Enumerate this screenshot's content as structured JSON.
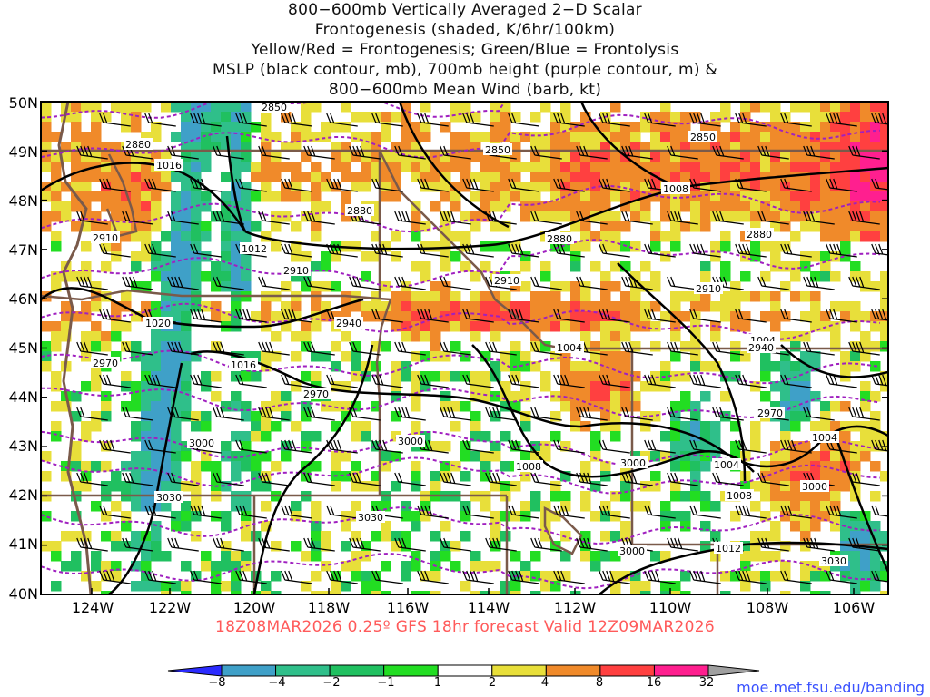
{
  "title": {
    "line1": "800−600mb Vertically Averaged 2−D Scalar",
    "line2": "Frontogenesis (shaded, K/6hr/100km)",
    "line3": "Yellow/Red = Frontogenesis;  Green/Blue = Frontolysis",
    "line4": "MSLP (black contour, mb), 700mb height (purple contour, m) &",
    "line5": "800−600mb Mean Wind (barb, kt)"
  },
  "latitude_labels": [
    "50N",
    "49N",
    "48N",
    "47N",
    "46N",
    "45N",
    "44N",
    "43N",
    "42N",
    "41N",
    "40N"
  ],
  "longitude_labels": [
    "124W",
    "122W",
    "120W",
    "118W",
    "116W",
    "114W",
    "112W",
    "110W",
    "108W",
    "106W"
  ],
  "run_info": "18Z08MAR2026 0.25º GFS 18hr forecast Valid 12Z09MAR2026",
  "credit": "moe.met.fsu.edu/banding",
  "colorbar": {
    "ticks": [
      "−8",
      "−4",
      "−2",
      "−1",
      "1",
      "2",
      "4",
      "8",
      "16",
      "32"
    ],
    "colors": [
      "#2b2bff",
      "#3fa0c8",
      "#2fbf8a",
      "#20c060",
      "#22dd22",
      "#ffffff",
      "#e8df3a",
      "#f08a2a",
      "#ff4040",
      "#ff1f8f",
      "#000000",
      "#a0a0a0"
    ]
  },
  "contour_labels": {
    "mslp": [
      "1016",
      "1012",
      "1008",
      "1004",
      "1004",
      "1020",
      "1016",
      "1008",
      "1004",
      "1004",
      "1004",
      "1008",
      "1012"
    ],
    "height": [
      "2850",
      "2880",
      "2850",
      "2850",
      "2880",
      "2910",
      "2880",
      "2880",
      "2910",
      "2910",
      "2910",
      "2940",
      "2970",
      "2970",
      "2940",
      "2970",
      "3000",
      "3000",
      "3000",
      "3000",
      "3030",
      "3030",
      "3000",
      "3030"
    ]
  },
  "legend_colors": {
    "mslp_contour": "#000000",
    "height_contour": "#a020c0",
    "borders": "#7a5a4a",
    "run_info_text": "#ff5a5a"
  }
}
